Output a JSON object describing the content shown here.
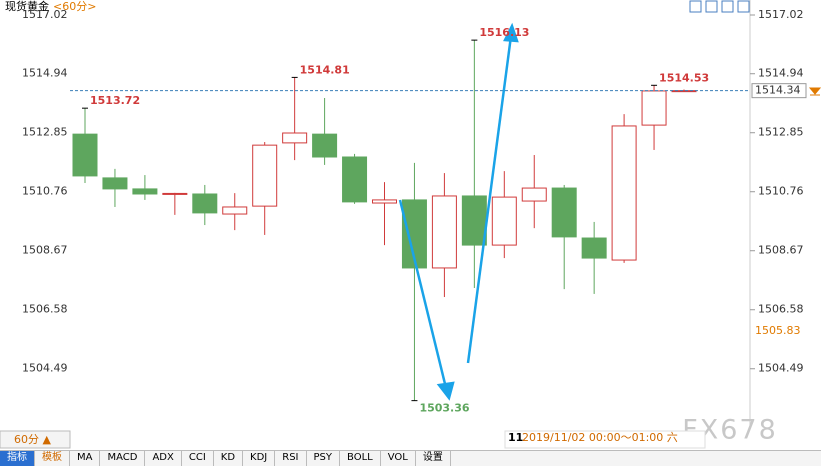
{
  "chart_data": {
    "type": "candlestick",
    "title": "现货黄金",
    "subtitle": "<60分>",
    "open": [
      1512.8,
      1511.25,
      1510.86,
      1510.68,
      1510.68,
      1509.97,
      1510.25,
      1512.49,
      1512.8,
      1511.99,
      1510.36,
      1510.47,
      1508.06,
      1510.61,
      1508.87,
      1510.43,
      1510.89,
      1509.12,
      1508.34,
      1513.12,
      1514.33
    ],
    "high": [
      1513.72,
      1511.57,
      1511.35,
      1510.72,
      1511.0,
      1510.71,
      1512.52,
      1514.81,
      1514.08,
      1512.1,
      1511.1,
      1511.78,
      1511.42,
      1516.13,
      1511.49,
      1512.06,
      1511.0,
      1509.69,
      1513.51,
      1514.53,
      1514.38
    ],
    "low": [
      1511.07,
      1510.22,
      1510.47,
      1509.94,
      1509.58,
      1509.4,
      1509.23,
      1511.88,
      1511.71,
      1510.33,
      1508.87,
      1503.36,
      1507.03,
      1507.35,
      1508.41,
      1509.47,
      1507.31,
      1507.14,
      1508.24,
      1512.24,
      1514.3
    ],
    "close": [
      1511.32,
      1510.86,
      1510.68,
      1510.7,
      1510.01,
      1510.22,
      1512.41,
      1512.84,
      1511.99,
      1510.4,
      1510.47,
      1508.06,
      1510.61,
      1508.87,
      1510.57,
      1510.89,
      1509.16,
      1508.41,
      1513.09,
      1514.33,
      1514.34
    ],
    "up_color": "#d03a3a",
    "down_color": "#5ea65e",
    "ylim": [
      1502.32,
      1517.02
    ],
    "yticks": [
      1504.49,
      1506.58,
      1508.67,
      1510.76,
      1512.85,
      1514.94,
      1517.02
    ],
    "current_price": 1514.34,
    "marker_price": 1505.83,
    "period": "60分 ▲",
    "cursor_day": "11",
    "cursor_label": "2019/11/02 00:00～01:00 六",
    "watermark": "FX678",
    "toolbar": [
      "指标",
      "模板",
      "MA",
      "MACD",
      "ADX",
      "CCI",
      "KD",
      "KDJ",
      "RSI",
      "PSY",
      "BOLL",
      "VOL",
      "设置"
    ]
  }
}
